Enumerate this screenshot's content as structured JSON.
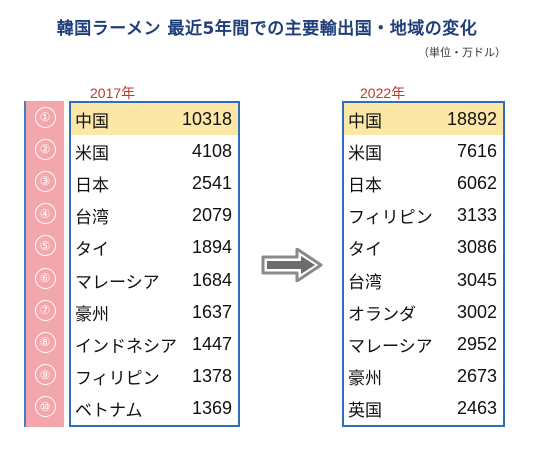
{
  "title": "韓国ラーメン 最近5年間での主要輸出国・地域の変化",
  "unit": "（単位・万ドル）",
  "chart_data": [
    {
      "type": "table",
      "year_label": "2017年",
      "ranks": [
        "①",
        "②",
        "③",
        "④",
        "⑤",
        "⑥",
        "⑦",
        "⑧",
        "⑨",
        "⑩"
      ],
      "rows": [
        {
          "country": "中国",
          "value": 10318
        },
        {
          "country": "米国",
          "value": 4108
        },
        {
          "country": "日本",
          "value": 2541
        },
        {
          "country": "台湾",
          "value": 2079
        },
        {
          "country": "タイ",
          "value": 1894
        },
        {
          "country": "マレーシア",
          "value": 1684
        },
        {
          "country": "豪州",
          "value": 1637
        },
        {
          "country": "インドネシア",
          "value": 1447
        },
        {
          "country": "フィリピン",
          "value": 1378
        },
        {
          "country": "ベトナム",
          "value": 1369
        }
      ]
    },
    {
      "type": "table",
      "year_label": "2022年",
      "rows": [
        {
          "country": "中国",
          "value": 18892
        },
        {
          "country": "米国",
          "value": 7616
        },
        {
          "country": "日本",
          "value": 6062
        },
        {
          "country": "フィリピン",
          "value": 3133
        },
        {
          "country": "タイ",
          "value": 3086
        },
        {
          "country": "台湾",
          "value": 3045
        },
        {
          "country": "オランダ",
          "value": 3002
        },
        {
          "country": "マレーシア",
          "value": 2952
        },
        {
          "country": "豪州",
          "value": 2673
        },
        {
          "country": "英国",
          "value": 2463
        }
      ]
    }
  ],
  "colors": {
    "title": "#1f3e7a",
    "year": "#c0392b",
    "rank_bg": "#f3a7ac",
    "border": "#2e6fb7",
    "highlight": "#fde7a6"
  }
}
